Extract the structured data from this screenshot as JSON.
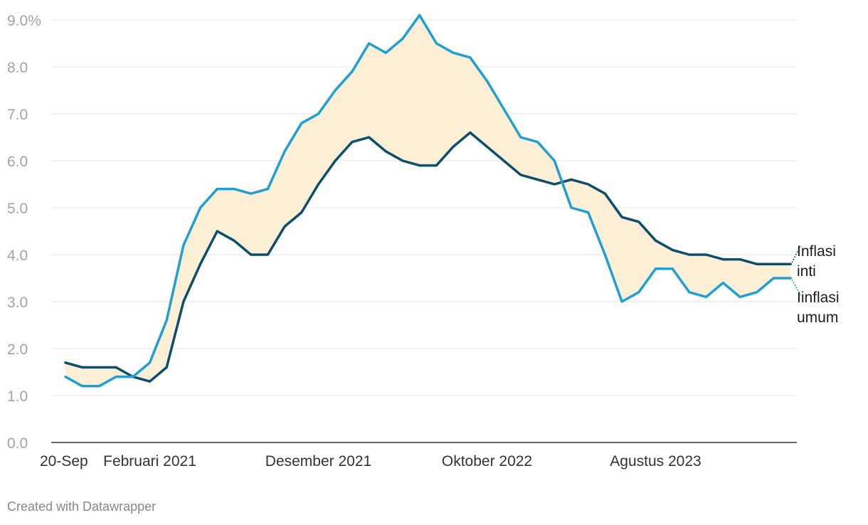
{
  "chart_data": {
    "type": "line",
    "y_tick_labels": [
      "0.0",
      "1.0",
      "2.0",
      "3.0",
      "4.0",
      "5.0",
      "6.0",
      "7.0",
      "8.0",
      "9.0%"
    ],
    "ylim": [
      0,
      9.5
    ],
    "x_tick_labels": [
      {
        "index": 0,
        "label": "20-Sep"
      },
      {
        "index": 5,
        "label": "Februari 2021"
      },
      {
        "index": 15,
        "label": "Desember 2021"
      },
      {
        "index": 25,
        "label": "Oktober 2022"
      },
      {
        "index": 35,
        "label": "Agustus 2023"
      }
    ],
    "x_count": 44,
    "series": [
      {
        "name": "Inflasi inti",
        "label_lines": [
          "Inflasi",
          "inti"
        ],
        "color": "#0b4f6c",
        "values": [
          1.7,
          1.6,
          1.6,
          1.6,
          1.4,
          1.3,
          1.6,
          3.0,
          3.8,
          4.5,
          4.3,
          4.0,
          4.0,
          4.6,
          4.9,
          5.5,
          6.0,
          6.4,
          6.5,
          6.2,
          6.0,
          5.9,
          5.9,
          6.3,
          6.6,
          6.3,
          6.0,
          5.7,
          5.6,
          5.5,
          5.6,
          5.5,
          5.3,
          4.8,
          4.7,
          4.3,
          4.1,
          4.0,
          4.0,
          3.9,
          3.9,
          3.8,
          3.8,
          3.8
        ]
      },
      {
        "name": "Iinflasi umum",
        "label_lines": [
          "Iinflasi",
          "umum"
        ],
        "color": "#1ea0d2",
        "values": [
          1.4,
          1.2,
          1.2,
          1.4,
          1.4,
          1.7,
          2.6,
          4.2,
          5.0,
          5.4,
          5.4,
          5.3,
          5.4,
          6.2,
          6.8,
          7.0,
          7.5,
          7.9,
          8.5,
          8.3,
          8.6,
          9.1,
          8.5,
          8.3,
          8.2,
          7.7,
          7.1,
          6.5,
          6.4,
          6.0,
          5.0,
          4.9,
          4.0,
          3.0,
          3.2,
          3.7,
          3.7,
          3.2,
          3.1,
          3.4,
          3.1,
          3.2,
          3.5,
          3.5
        ]
      }
    ],
    "band_color": "#fdeed6",
    "grid": true
  },
  "footer": {
    "text": "Created with Datawrapper"
  }
}
